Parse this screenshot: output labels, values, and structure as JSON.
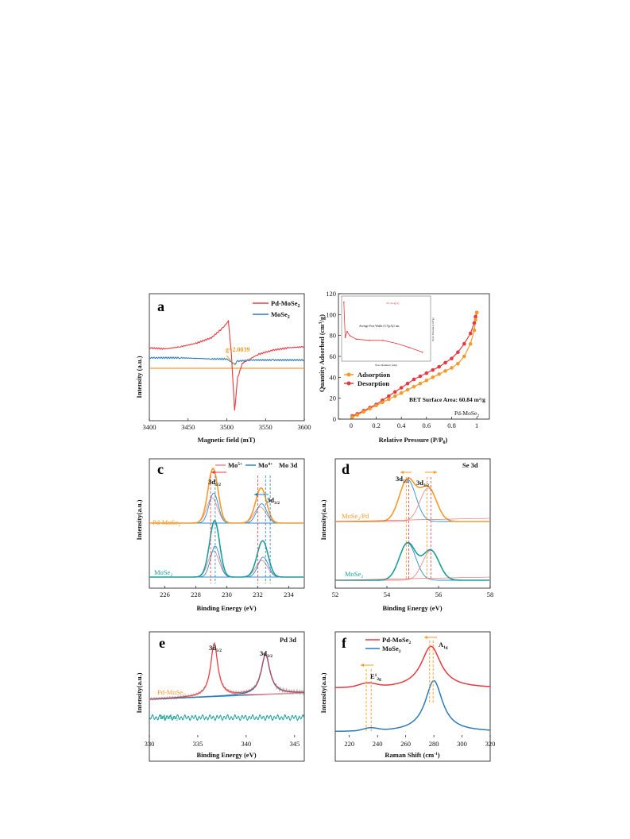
{
  "colors": {
    "red": "#e8383d",
    "blue": "#2b7bb9",
    "orange": "#f39a2b",
    "teal": "#1a9e9a",
    "pink": "#f08a8a",
    "lightblue": "#2f8ccc",
    "grey": "#b8b8b8"
  },
  "chart_data": [
    {
      "panel": "a",
      "type": "line",
      "xlabel": "Magnetic field (mT)",
      "ylabel": "Intensity (a.u.)",
      "xlim": [
        3400,
        3600
      ],
      "xticks": [
        3400,
        3450,
        3500,
        3550,
        3600
      ],
      "series": [
        {
          "name": "Pd-MoSe2",
          "color": "#e8383d",
          "x": [
            3400,
            3420,
            3440,
            3460,
            3480,
            3495,
            3502,
            3506,
            3510,
            3514,
            3520,
            3540,
            3560,
            3580,
            3600
          ],
          "y": [
            0.62,
            0.61,
            0.63,
            0.66,
            0.71,
            0.8,
            0.86,
            0.55,
            0.05,
            0.35,
            0.48,
            0.56,
            0.6,
            0.62,
            0.63
          ]
        },
        {
          "name": "MoSe2",
          "color": "#2b7bb9",
          "x": [
            3400,
            3440,
            3480,
            3500,
            3506,
            3510,
            3514,
            3530,
            3560,
            3600
          ],
          "y": [
            0.53,
            0.53,
            0.52,
            0.52,
            0.49,
            0.47,
            0.5,
            0.51,
            0.51,
            0.51
          ]
        }
      ],
      "annotation": "g=2.0039",
      "legend": [
        "Pd-MoSe2",
        "MoSe2"
      ]
    },
    {
      "panel": "b",
      "type": "line",
      "xlabel": "Relative Pressure (P/P0)",
      "ylabel": "Quantity Adsorbed (cm3/g)",
      "xlim": [
        -0.1,
        1.1
      ],
      "ylim": [
        0,
        120
      ],
      "xticks": [
        0.0,
        0.2,
        0.4,
        0.6,
        0.8,
        1.0
      ],
      "yticks": [
        0,
        20,
        40,
        60,
        80,
        100,
        120
      ],
      "series": [
        {
          "name": "Adsorption",
          "color": "#f39a2b",
          "x": [
            0.01,
            0.05,
            0.1,
            0.15,
            0.2,
            0.25,
            0.3,
            0.35,
            0.4,
            0.45,
            0.5,
            0.55,
            0.6,
            0.65,
            0.7,
            0.75,
            0.8,
            0.85,
            0.9,
            0.95,
            0.98,
            0.99,
            1.0
          ],
          "y": [
            2,
            4,
            7,
            10,
            13,
            16,
            19,
            22,
            25,
            28,
            31,
            34,
            37,
            40,
            43,
            46,
            49,
            53,
            60,
            72,
            85,
            95,
            102
          ]
        },
        {
          "name": "Desorption",
          "color": "#e8383d",
          "x": [
            1.0,
            0.99,
            0.98,
            0.95,
            0.9,
            0.85,
            0.8,
            0.75,
            0.7,
            0.65,
            0.6,
            0.55,
            0.5,
            0.45,
            0.4,
            0.35,
            0.3,
            0.25,
            0.2,
            0.15,
            0.1,
            0.05,
            0.01
          ],
          "y": [
            102,
            98,
            92,
            82,
            72,
            64,
            58,
            54,
            50,
            47,
            44,
            41,
            38,
            34,
            30,
            26,
            22,
            18,
            14,
            11,
            8,
            5,
            3
          ]
        }
      ],
      "annotations": [
        "BET Surface Area: 60.84 m²/g",
        "Pd-MoSe₂"
      ],
      "inset": {
        "legend": "dV/dlog(w)",
        "text": "Average Pore Width:15.7(pA)1 nm",
        "xlabel": "Pore diameter (nm)",
        "ylabel": "Pore Volume (cm³/g)",
        "x": [
          1,
          3,
          6,
          10,
          20,
          40,
          60,
          80,
          100,
          120
        ],
        "y": [
          0.95,
          0.35,
          0.45,
          0.38,
          0.32,
          0.3,
          0.3,
          0.25,
          0.18,
          0.1
        ]
      }
    },
    {
      "panel": "c",
      "type": "line",
      "title": "Mo 3d",
      "xlabel": "Binding Energy (eV)",
      "ylabel": "Intensity(a.u.)",
      "xlim": [
        225,
        235
      ],
      "xticks": [
        226,
        228,
        230,
        232,
        234
      ],
      "legend": [
        "Mo⁵⁺",
        "Mo⁴⁺"
      ],
      "labels": [
        "3d5/2",
        "3d3/2",
        "Pd-MoSe2",
        "MoSe2"
      ],
      "peaks_eV": {
        "Pd-MoSe2": [
          229.1,
          232.2
        ],
        "MoSe2": [
          229.2,
          232.3
        ]
      }
    },
    {
      "panel": "d",
      "type": "line",
      "title": "Se 3d",
      "xlabel": "Binding Energy (eV)",
      "ylabel": "Intensity(a.u.)",
      "xlim": [
        52,
        58
      ],
      "xticks": [
        52,
        54,
        56,
        58
      ],
      "labels": [
        "3d5/2",
        "3d3/2",
        "MoSe2/Pd",
        "MoSe2"
      ],
      "peaks_eV": {
        "MoSe2/Pd": [
          54.8,
          55.6
        ],
        "MoSe2": [
          54.8,
          55.7
        ]
      }
    },
    {
      "panel": "e",
      "type": "line",
      "title": "Pd 3d",
      "xlabel": "Binding Energy (eV)",
      "ylabel": "Intensity(a.u.)",
      "xlim": [
        330,
        346
      ],
      "xticks": [
        330,
        335,
        340,
        345
      ],
      "labels": [
        "3d5/2",
        "3d3/2",
        "Pd-MoSe2",
        "MoSe2"
      ],
      "peaks_eV": {
        "Pd-MoSe2": [
          336.7,
          342.0
        ]
      }
    },
    {
      "panel": "f",
      "type": "line",
      "xlabel": "Raman Shift (cm⁻¹)",
      "ylabel": "Intensity(a.u.)",
      "xlim": [
        210,
        320
      ],
      "xticks": [
        220,
        240,
        260,
        280,
        300,
        320
      ],
      "legend": [
        "Pd-MoSe2",
        "MoSe2"
      ],
      "labels": [
        "A1g",
        "E¹2g"
      ],
      "peaks_cm": {
        "Pd-MoSe2": [
          233,
          278
        ],
        "MoSe2": [
          235,
          280
        ]
      }
    }
  ],
  "text": {
    "a": {
      "label": "a",
      "leg1": "Pd-MoSe",
      "leg2": "MoSe",
      "g": "g=2.0039",
      "xlabel": "Magnetic field (mT)",
      "ylabel": "Intensity (a.u.)"
    },
    "b": {
      "label": "b",
      "leg1": "Adsorption",
      "leg2": "Desorption",
      "bet": "BET Surface Area: 60.84 m²/g",
      "sample": "Pd-MoSe",
      "xlabel": "Relative Pressure (P/P",
      "ylabel": "Quantity Adsorbed (cm",
      "inset_leg": "dV/dlog(w)",
      "inset_txt": "Average Pore Width:15.7(pA)1 nm",
      "inset_x": "Pore diameter (nm)",
      "inset_y": "Pore Volume (cm³/g)"
    },
    "c": {
      "label": "c",
      "leg1": "Mo",
      "leg2": "Mo",
      "title": "Mo 3d",
      "p1": "3d",
      "p2": "3d",
      "s1": "Pd-MoSe",
      "s2": "MoSe",
      "xlabel": "Binding Energy (eV)",
      "ylabel": "Intensity(a.u.)"
    },
    "d": {
      "label": "d",
      "title": "Se 3d",
      "p1": "3d",
      "p2": "3d",
      "s1": "MoSe",
      "s1b": "/Pd",
      "s2": "MoSe",
      "xlabel": "Binding Energy (eV)",
      "ylabel": "Intensity(a.u.)"
    },
    "e": {
      "label": "e",
      "title": "Pd 3d",
      "p1": "3d",
      "p2": "3d",
      "s1": "Pd-MoSe",
      "s2": "MoSe",
      "xlabel": "Binding Energy (eV)",
      "ylabel": "Intensity(a.u.)"
    },
    "f": {
      "label": "f",
      "leg1": "Pd-MoSe",
      "leg2": "MoSe",
      "p1": "A",
      "p2": "E",
      "xlabel": "Raman Shift (cm",
      "ylabel": "Intensity(a.u.)"
    }
  }
}
